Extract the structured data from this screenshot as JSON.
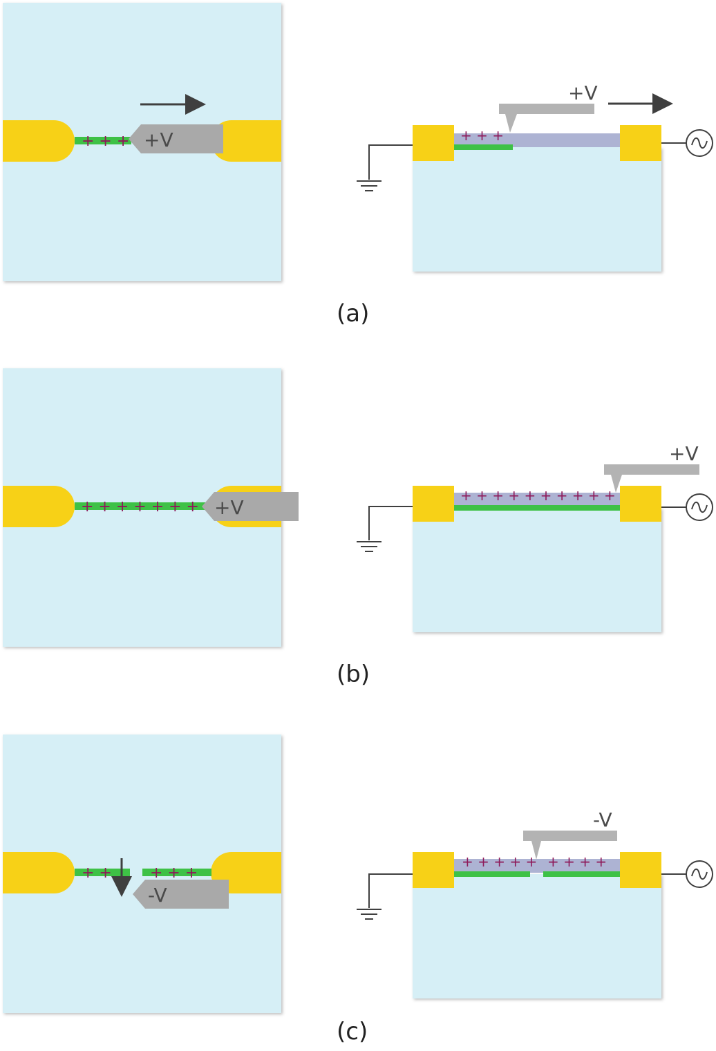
{
  "colors": {
    "substrate": "#d6eff6",
    "electrode": "#f7d117",
    "wire": "#3ec146",
    "charge": "#8e1a5a",
    "tip": "#a9a9a9",
    "tip_light": "#b3b3b3",
    "oxide": "#adb3d3",
    "line": "#3f3f3f",
    "tip_text": "#4a4a4a",
    "label_dark": "#555555"
  },
  "panels": [
    {
      "caption": "(a)",
      "top_tip_label": "+V",
      "side_tip_label": "+V",
      "top_charges": "+ + +",
      "side_charges": "+ + +"
    },
    {
      "caption": "(b)",
      "top_tip_label": "+V",
      "side_tip_label": "+V",
      "top_charges": "+ + + + + + + +",
      "side_charges": "+ + + + + + + + + +"
    },
    {
      "caption": "(c)",
      "top_tip_label": "-V",
      "side_tip_label": "-V",
      "top_charges_left": "+ +",
      "top_charges_right": "+ + +",
      "side_charges_left": "+ + + + +",
      "side_charges_right": "+ + + +"
    }
  ]
}
